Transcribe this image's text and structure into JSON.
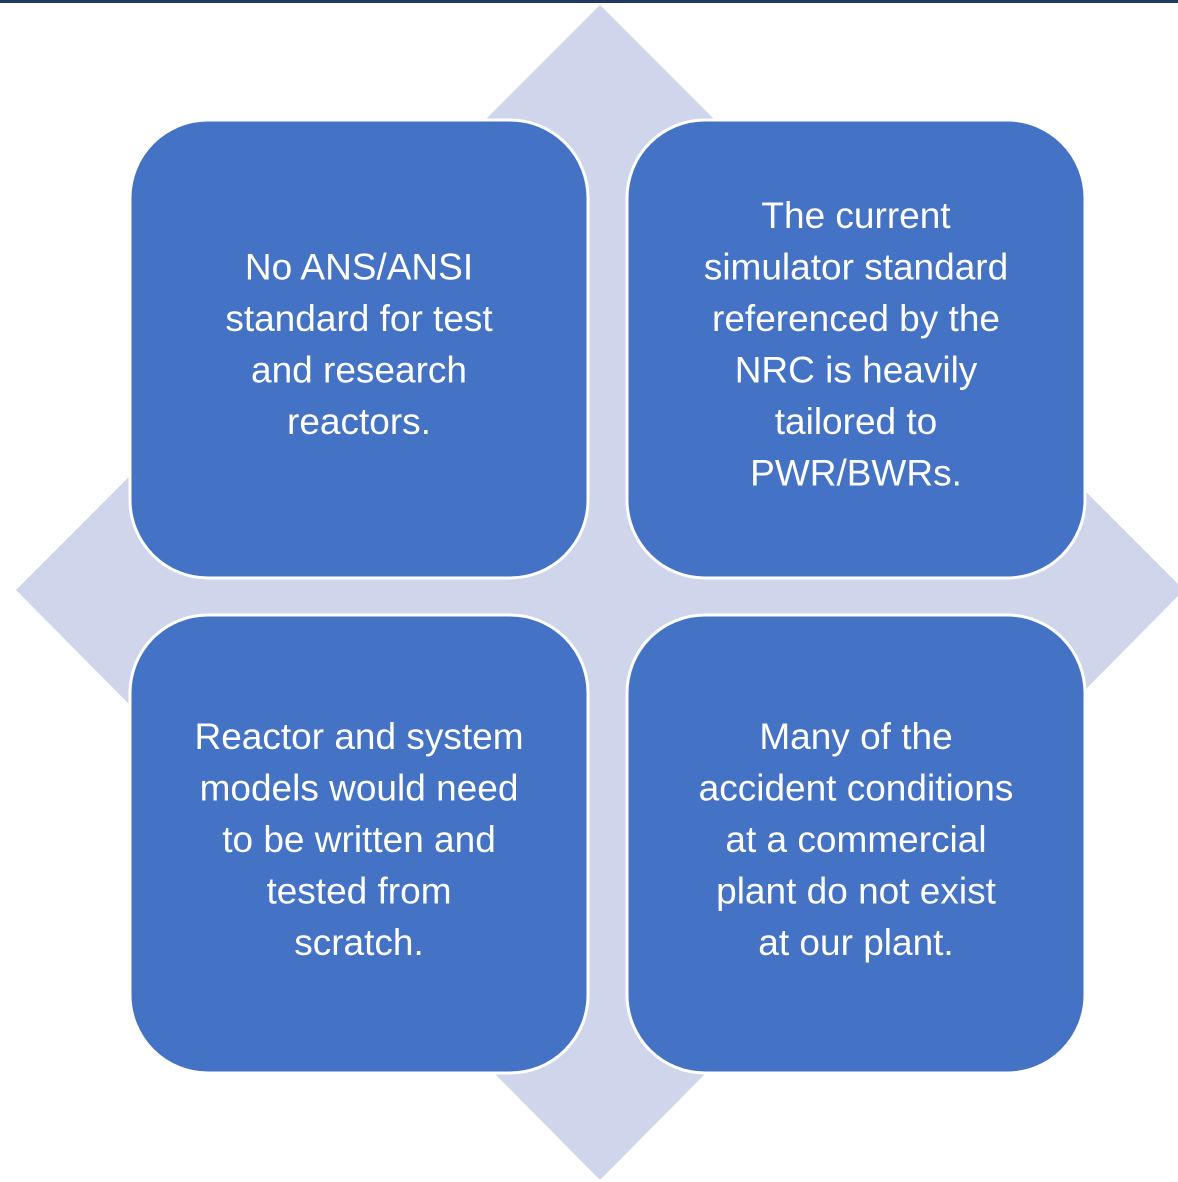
{
  "nodes": [
    {
      "lines": [
        "No ANS/ANSI",
        "standard for test",
        "and research",
        "reactors."
      ]
    },
    {
      "lines": [
        "The current",
        "simulator standard",
        "referenced by the",
        "NRC is heavily",
        "tailored to",
        "PWR/BWRs."
      ]
    },
    {
      "lines": [
        "Reactor and system",
        "models would need",
        "to be written and",
        "tested from",
        "scratch."
      ]
    },
    {
      "lines": [
        "Many of the",
        "accident conditions",
        "at a commercial",
        "plant do not exist",
        "at our plant."
      ]
    }
  ]
}
